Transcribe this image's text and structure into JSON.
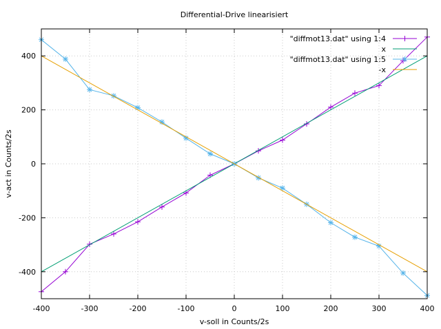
{
  "chart_data": {
    "type": "line",
    "title": "Differential-Drive linearisiert",
    "xlabel": "v-soll in Counts/2s",
    "ylabel": "v-act in Counts/2s",
    "xlim": [
      -400,
      400
    ],
    "ylim": [
      -500,
      500
    ],
    "xticks": [
      -400,
      -300,
      -200,
      -100,
      0,
      100,
      200,
      300,
      400
    ],
    "yticks": [
      -400,
      -200,
      0,
      200,
      400
    ],
    "grid": true,
    "legend_position": "top-right",
    "series": [
      {
        "name": "\"diffmot13.dat\" using 1:4",
        "color": "#9400d3",
        "marker": "plus",
        "x": [
          -400,
          -350,
          -300,
          -250,
          -200,
          -150,
          -100,
          -50,
          0,
          50,
          100,
          150,
          200,
          250,
          300,
          350,
          400
        ],
        "y": [
          -474,
          -400,
          -298,
          -260,
          -215,
          -160,
          -108,
          -42,
          0,
          48,
          88,
          148,
          210,
          262,
          290,
          382,
          470
        ]
      },
      {
        "name": "x",
        "color": "#009e73",
        "marker": "none",
        "x": [
          -400,
          400
        ],
        "y": [
          -400,
          400
        ]
      },
      {
        "name": "\"diffmot13.dat\" using 1:5",
        "color": "#56b4e9",
        "marker": "star",
        "x": [
          -400,
          -350,
          -300,
          -250,
          -200,
          -150,
          -100,
          -50,
          0,
          50,
          100,
          150,
          200,
          250,
          300,
          350,
          400
        ],
        "y": [
          460,
          388,
          275,
          252,
          208,
          155,
          95,
          37,
          0,
          -52,
          -90,
          -150,
          -218,
          -272,
          -305,
          -405,
          -488
        ]
      },
      {
        "name": "-x",
        "color": "#e69f00",
        "marker": "none",
        "x": [
          -400,
          400
        ],
        "y": [
          400,
          -400
        ]
      }
    ]
  }
}
